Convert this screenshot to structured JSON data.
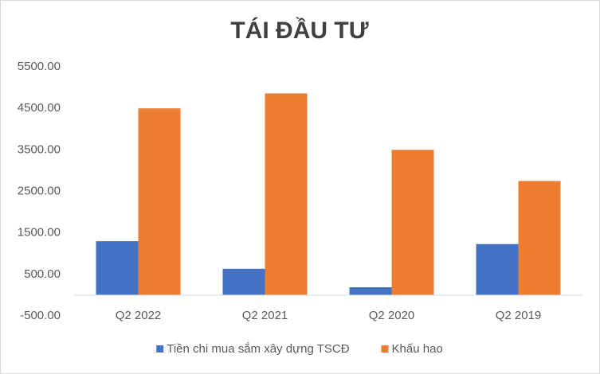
{
  "chart_data": {
    "type": "bar",
    "title": "TÁI ĐẦU TƯ",
    "categories": [
      "Q2 2022",
      "Q2 2021",
      "Q2 2020",
      "Q2 2019"
    ],
    "series": [
      {
        "name": "Tiền chi mua sắm xây dựng TSCĐ",
        "color": "#4472c4",
        "values": [
          1300,
          635,
          190,
          1230
        ]
      },
      {
        "name": "Khấu hao",
        "color": "#ed7d31",
        "values": [
          4500,
          4860,
          3500,
          2750
        ]
      }
    ],
    "ylim": [
      -500,
      5500
    ],
    "yticks": [
      {
        "value": -500,
        "label": "-500.00"
      },
      {
        "value": 500,
        "label": "500.00"
      },
      {
        "value": 1500,
        "label": "1500.00"
      },
      {
        "value": 2500,
        "label": "2500.00"
      },
      {
        "value": 3500,
        "label": "3500.00"
      },
      {
        "value": 4500,
        "label": "4500.00"
      },
      {
        "value": 5500,
        "label": "5500.00"
      }
    ],
    "grid": false,
    "legend": "bottom"
  }
}
